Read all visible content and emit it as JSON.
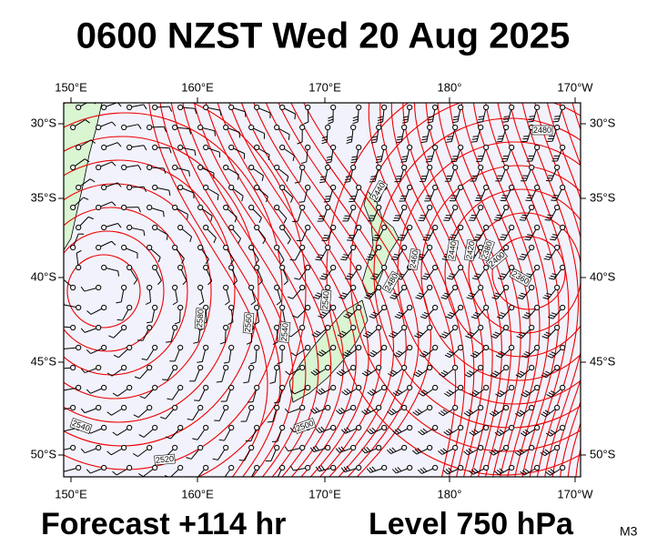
{
  "title": "0600 NZST Wed 20 Aug 2025",
  "map": {
    "lon_labels": [
      "150°E",
      "160°E",
      "170°E",
      "180°",
      "170°W"
    ],
    "lat_labels": [
      "30°S",
      "35°S",
      "40°S",
      "45°S",
      "50°S"
    ],
    "contour_labels": [
      2480,
      2440,
      2460,
      2480,
      2440,
      2420,
      2380,
      2400,
      2360,
      2540,
      2540,
      2560,
      2580,
      2540,
      2520,
      2500
    ]
  },
  "footer": {
    "forecast": "Forecast +114 hr",
    "level": "Level 750 hPa",
    "model": "M3"
  }
}
